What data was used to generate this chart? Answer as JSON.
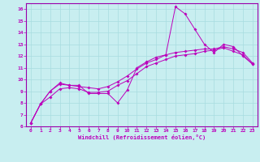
{
  "xlabel": "Windchill (Refroidissement éolien,°C)",
  "bg_color": "#c8eef0",
  "grid_color": "#a8dce0",
  "line_color": "#bb00bb",
  "spine_color": "#9900aa",
  "xlim": [
    -0.5,
    23.5
  ],
  "ylim": [
    6,
    16.5
  ],
  "xticks": [
    0,
    1,
    2,
    3,
    4,
    5,
    6,
    7,
    8,
    9,
    10,
    11,
    12,
    13,
    14,
    15,
    16,
    17,
    18,
    19,
    20,
    21,
    22,
    23
  ],
  "yticks": [
    6,
    7,
    8,
    9,
    10,
    11,
    12,
    13,
    14,
    15,
    16
  ],
  "line1_x": [
    0,
    1,
    2,
    3,
    4,
    5,
    6,
    7,
    8,
    9,
    10,
    11,
    12,
    13,
    14,
    15,
    16,
    17,
    18,
    19,
    20,
    21,
    22,
    23
  ],
  "line1_y": [
    6.3,
    7.9,
    9.0,
    9.7,
    9.5,
    9.5,
    8.8,
    8.8,
    8.8,
    8.0,
    9.1,
    11.0,
    11.5,
    11.9,
    12.1,
    16.2,
    15.6,
    14.3,
    13.0,
    12.3,
    13.0,
    12.8,
    12.0,
    11.3
  ],
  "line2_x": [
    0,
    1,
    2,
    3,
    4,
    5,
    6,
    7,
    8,
    9,
    10,
    11,
    12,
    13,
    14,
    15,
    16,
    17,
    18,
    19,
    20,
    21,
    22,
    23
  ],
  "line2_y": [
    6.3,
    7.9,
    9.0,
    9.6,
    9.5,
    9.4,
    9.3,
    9.2,
    9.4,
    9.8,
    10.3,
    10.9,
    11.4,
    11.7,
    12.1,
    12.3,
    12.4,
    12.5,
    12.6,
    12.6,
    12.8,
    12.6,
    12.3,
    11.4
  ],
  "line3_x": [
    0,
    1,
    2,
    3,
    4,
    5,
    6,
    7,
    8,
    9,
    10,
    11,
    12,
    13,
    14,
    15,
    16,
    17,
    18,
    19,
    20,
    21,
    22,
    23
  ],
  "line3_y": [
    6.3,
    7.9,
    8.5,
    9.2,
    9.3,
    9.2,
    8.9,
    8.9,
    9.0,
    9.5,
    9.9,
    10.5,
    11.1,
    11.4,
    11.7,
    12.0,
    12.1,
    12.2,
    12.4,
    12.5,
    12.7,
    12.4,
    12.1,
    11.3
  ]
}
